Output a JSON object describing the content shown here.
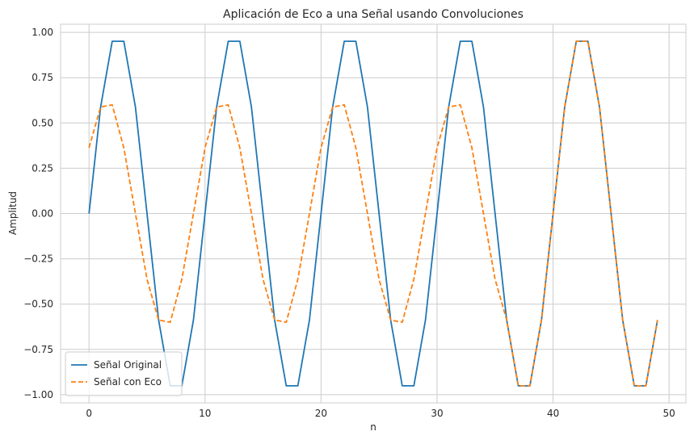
{
  "chart_data": {
    "type": "line",
    "title": "Aplicación de Eco a una Señal usando Convoluciones",
    "xlabel": "n",
    "ylabel": "Amplitud",
    "xlim": [
      -2.45,
      51.45
    ],
    "ylim": [
      -1.045,
      1.045
    ],
    "xticks": [
      0,
      10,
      20,
      30,
      40,
      50
    ],
    "yticks": [
      -1.0,
      -0.75,
      -0.5,
      -0.25,
      0.0,
      0.25,
      0.5,
      0.75,
      1.0
    ],
    "xtick_labels": [
      "0",
      "10",
      "20",
      "30",
      "40",
      "50"
    ],
    "ytick_labels": [
      "−1.00",
      "−0.75",
      "−0.50",
      "−0.25",
      "0.00",
      "0.25",
      "0.50",
      "0.75",
      "1.00"
    ],
    "grid": true,
    "legend_position": "lower-left",
    "x": [
      0,
      1,
      2,
      3,
      4,
      5,
      6,
      7,
      8,
      9,
      10,
      11,
      12,
      13,
      14,
      15,
      16,
      17,
      18,
      19,
      20,
      21,
      22,
      23,
      24,
      25,
      26,
      27,
      28,
      29,
      30,
      31,
      32,
      33,
      34,
      35,
      36,
      37,
      38,
      39,
      40,
      41,
      42,
      43,
      44,
      45,
      46,
      47,
      48,
      49
    ],
    "series": [
      {
        "name": "Señal Original",
        "color": "#1f77b4",
        "dash": "solid",
        "values": [
          0,
          0.588,
          0.951,
          0.951,
          0.588,
          0,
          -0.588,
          -0.951,
          -0.951,
          -0.588,
          0,
          0.588,
          0.951,
          0.951,
          0.588,
          0,
          -0.588,
          -0.951,
          -0.951,
          -0.588,
          0,
          0.588,
          0.951,
          0.951,
          0.588,
          0,
          -0.588,
          -0.951,
          -0.951,
          -0.588,
          0,
          0.588,
          0.951,
          0.951,
          0.588,
          0,
          -0.588,
          -0.951,
          -0.951,
          -0.588,
          0,
          0.588,
          0.951,
          0.951,
          0.588,
          0,
          -0.588,
          -0.951,
          -0.951,
          -0.588
        ]
      },
      {
        "name": "Señal con Eco",
        "color": "#ff7f0e",
        "dash": "dashed",
        "values": [
          0.363,
          0.588,
          0.6,
          0.363,
          0,
          -0.363,
          -0.588,
          -0.6,
          -0.363,
          0,
          0.363,
          0.588,
          0.6,
          0.363,
          0,
          -0.363,
          -0.588,
          -0.6,
          -0.363,
          0,
          0.363,
          0.588,
          0.6,
          0.363,
          0,
          -0.363,
          -0.588,
          -0.6,
          -0.363,
          0,
          0.363,
          0.588,
          0.6,
          0.363,
          0,
          -0.363,
          -0.588,
          -0.951,
          -0.951,
          -0.588,
          0,
          0.588,
          0.951,
          0.951,
          0.588,
          0,
          -0.588,
          -0.951,
          -0.951,
          -0.588
        ]
      }
    ]
  }
}
